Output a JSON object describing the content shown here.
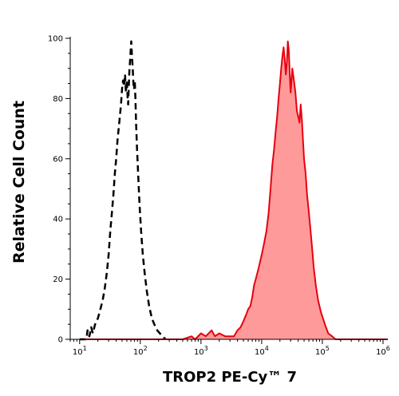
{
  "chart_data": {
    "type": "histogram",
    "xlabel": "TROP2 PE-Cy™ 7",
    "ylabel": "Relative Cell Count",
    "x_scale": "log",
    "xlim": [
      7,
      1200000
    ],
    "ylim": [
      0,
      100
    ],
    "grid": false,
    "y_ticks": [
      "0",
      "20",
      "40",
      "60",
      "80",
      "100"
    ],
    "x_ticks": [
      {
        "base": "10",
        "exp": "1",
        "value": 10
      },
      {
        "base": "10",
        "exp": "2",
        "value": 100
      },
      {
        "base": "10",
        "exp": "3",
        "value": 1000
      },
      {
        "base": "10",
        "exp": "4",
        "value": 10000
      },
      {
        "base": "10",
        "exp": "5",
        "value": 100000
      },
      {
        "base": "10",
        "exp": "6",
        "value": 1000000
      }
    ],
    "series": [
      {
        "style": "dashed-outline",
        "color": "#000000",
        "points": [
          [
            10,
            0
          ],
          [
            12.9,
            0
          ],
          [
            13.5,
            3
          ],
          [
            14.5,
            1
          ],
          [
            15.5,
            4
          ],
          [
            16.5,
            2
          ],
          [
            18,
            5
          ],
          [
            20,
            7
          ],
          [
            22,
            10
          ],
          [
            24,
            13
          ],
          [
            26,
            17
          ],
          [
            28,
            22
          ],
          [
            30,
            28
          ],
          [
            32,
            36
          ],
          [
            34,
            42
          ],
          [
            36,
            48
          ],
          [
            38,
            55
          ],
          [
            40,
            60
          ],
          [
            42,
            66
          ],
          [
            44,
            70
          ],
          [
            46,
            74
          ],
          [
            48,
            78
          ],
          [
            50,
            83
          ],
          [
            52,
            86
          ],
          [
            54,
            84
          ],
          [
            56,
            88
          ],
          [
            58,
            82
          ],
          [
            60,
            86
          ],
          [
            62,
            80
          ],
          [
            63,
            78
          ],
          [
            64,
            82
          ],
          [
            66,
            89
          ],
          [
            68,
            93
          ],
          [
            70,
            97
          ],
          [
            71,
            99
          ],
          [
            73,
            94
          ],
          [
            75,
            90
          ],
          [
            77,
            85
          ],
          [
            79,
            83
          ],
          [
            81,
            86
          ],
          [
            83,
            80
          ],
          [
            85,
            72
          ],
          [
            88,
            64
          ],
          [
            92,
            55
          ],
          [
            97,
            45
          ],
          [
            103,
            36
          ],
          [
            110,
            28
          ],
          [
            118,
            22
          ],
          [
            128,
            16
          ],
          [
            140,
            11
          ],
          [
            155,
            7
          ],
          [
            170,
            5
          ],
          [
            190,
            3
          ],
          [
            210,
            2
          ],
          [
            235,
            1
          ],
          [
            260,
            0
          ]
        ]
      },
      {
        "style": "filled",
        "color": "#e8000d",
        "fill": "#ff9a9a",
        "points": [
          [
            12,
            0
          ],
          [
            500,
            0
          ],
          [
            700,
            1
          ],
          [
            800,
            0
          ],
          [
            1000,
            2
          ],
          [
            1200,
            1
          ],
          [
            1500,
            3
          ],
          [
            1700,
            1
          ],
          [
            2000,
            2
          ],
          [
            2500,
            1
          ],
          [
            3000,
            1
          ],
          [
            3500,
            1
          ],
          [
            4000,
            3
          ],
          [
            4500,
            4
          ],
          [
            5000,
            6
          ],
          [
            5500,
            8
          ],
          [
            6000,
            10
          ],
          [
            6500,
            11
          ],
          [
            7000,
            14
          ],
          [
            7500,
            18
          ],
          [
            8000,
            20
          ],
          [
            9000,
            24
          ],
          [
            10000,
            28
          ],
          [
            11000,
            32
          ],
          [
            12000,
            36
          ],
          [
            13000,
            42
          ],
          [
            14000,
            50
          ],
          [
            15000,
            58
          ],
          [
            16000,
            63
          ],
          [
            17000,
            69
          ],
          [
            18000,
            74
          ],
          [
            19000,
            80
          ],
          [
            20000,
            85
          ],
          [
            21000,
            90
          ],
          [
            22000,
            94
          ],
          [
            23000,
            97
          ],
          [
            24000,
            93
          ],
          [
            25000,
            88
          ],
          [
            26000,
            92
          ],
          [
            27000,
            99
          ],
          [
            28000,
            96
          ],
          [
            29000,
            88
          ],
          [
            30000,
            82
          ],
          [
            31000,
            86
          ],
          [
            32000,
            90
          ],
          [
            34000,
            86
          ],
          [
            36000,
            82
          ],
          [
            38000,
            76
          ],
          [
            40000,
            74
          ],
          [
            42000,
            72
          ],
          [
            44000,
            78
          ],
          [
            46000,
            73
          ],
          [
            48000,
            66
          ],
          [
            50000,
            60
          ],
          [
            53000,
            55
          ],
          [
            56000,
            48
          ],
          [
            60000,
            42
          ],
          [
            64000,
            36
          ],
          [
            68000,
            30
          ],
          [
            72000,
            24
          ],
          [
            78000,
            18
          ],
          [
            85000,
            13
          ],
          [
            95000,
            9
          ],
          [
            110000,
            5
          ],
          [
            125000,
            2
          ],
          [
            145000,
            1
          ],
          [
            165000,
            0
          ],
          [
            1200000,
            0
          ]
        ]
      }
    ]
  }
}
